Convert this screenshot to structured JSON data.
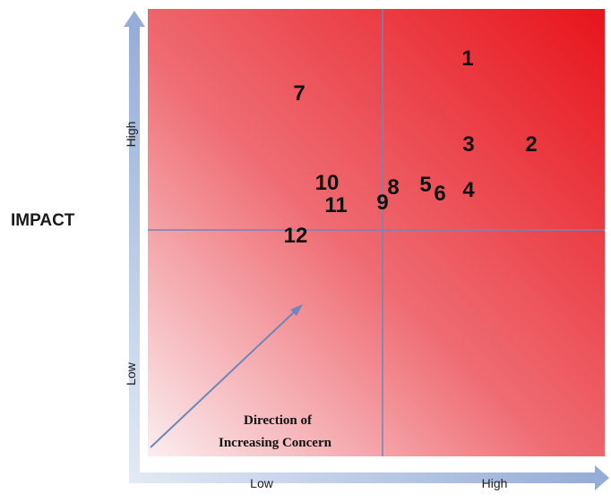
{
  "y_axis": {
    "title": "IMPACT",
    "low_label": "Low",
    "high_label": "High"
  },
  "x_axis": {
    "low_label": "Low",
    "high_label": "High"
  },
  "annotation": {
    "line1": "Direction of",
    "line2": "Increasing Concern"
  },
  "colors": {
    "high_concern": "#e8141c",
    "low_concern": "#fbeef0",
    "divider": "#7185b8",
    "axis_arrow": "#9fb4db",
    "number_text": "#111111"
  },
  "items": [
    {
      "label": "1"
    },
    {
      "label": "2"
    },
    {
      "label": "3"
    },
    {
      "label": "4"
    },
    {
      "label": "5"
    },
    {
      "label": "6"
    },
    {
      "label": "7"
    },
    {
      "label": "8"
    },
    {
      "label": "9"
    },
    {
      "label": "10"
    },
    {
      "label": "11"
    },
    {
      "label": "12"
    }
  ]
}
